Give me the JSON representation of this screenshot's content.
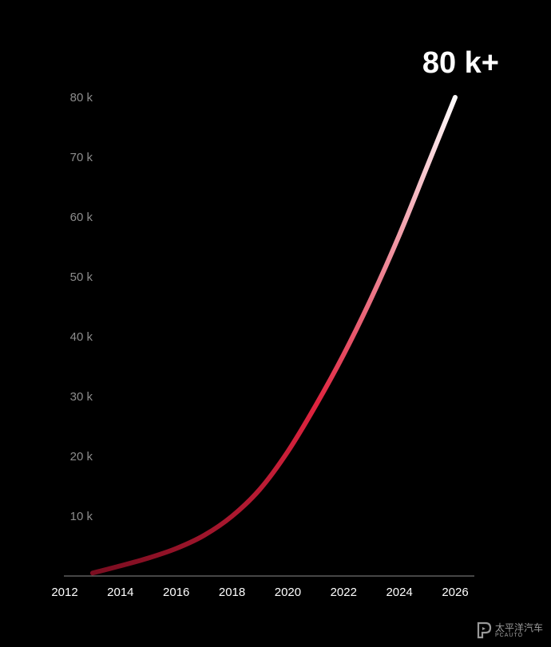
{
  "chart_data": {
    "type": "line",
    "x": [
      2013,
      2014,
      2015,
      2016,
      2017,
      2018,
      2019,
      2020,
      2021,
      2022,
      2023,
      2024,
      2025,
      2026
    ],
    "series": [
      {
        "values": [
          0.5,
          1.7,
          3.0,
          4.6,
          6.8,
          10.0,
          14.5,
          20.8,
          28.5,
          37.0,
          46.5,
          57.0,
          68.5,
          80.0
        ],
        "color_start": "#7a0d20",
        "color_mid": "#e0243f",
        "color_end": "#ffffff"
      }
    ],
    "x_ticks": [
      "2012",
      "2014",
      "2016",
      "2018",
      "2020",
      "2022",
      "2024",
      "2026"
    ],
    "y_ticks": [
      "10 k",
      "20 k",
      "30 k",
      "40 k",
      "50 k",
      "60 k",
      "70 k",
      "80 k"
    ],
    "xlim": [
      2012,
      2026
    ],
    "ylim": [
      0,
      80
    ],
    "end_label": "80 k+",
    "grid": false,
    "background": "#000000",
    "axis_color": "#8c8c8c"
  },
  "watermark": {
    "brand_cn": "太平洋汽车",
    "brand_en": "PCAUTO"
  }
}
